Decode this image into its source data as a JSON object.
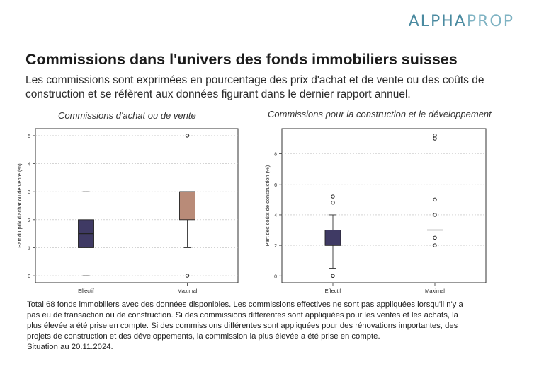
{
  "brand": {
    "logo_part1": "ALPHA",
    "logo_part2": "PROP"
  },
  "header": {
    "title": "Commissions dans l'univers des fonds immobiliers suisses",
    "subtitle": "Les commissions sont exprimées en pourcentage des prix d'achat et de vente ou des coûts de construction et se réfèrent aux données figurant dans le dernier rapport annuel."
  },
  "footnote": {
    "line1": "Total 68 fonds immobiliers avec des données disponibles. Les commissions effectives ne sont pas appliquées lorsqu'il n'y a",
    "line2": "pas eu de transaction ou de construction. Si des commissions différentes sont appliquées pour les ventes et les achats, la",
    "line3": "plus élevée a été prise en compte. Si des commissions différentes sont appliquées pour des rénovations importantes, des",
    "line4": "projets de construction et des développements, la commission la plus élevée a été prise en compte.",
    "line5": "Situation au 20.11.2024."
  },
  "chart_data": [
    {
      "type": "box",
      "title": "Commissions d'achat ou de vente",
      "ylabel": "Part du prix d'achat ou de vente (%)",
      "xlabel": "",
      "categories": [
        "Effectif",
        "Maximal"
      ],
      "yticks": [
        "0",
        "1",
        "2",
        "3",
        "4",
        "5"
      ],
      "ylim": [
        -0.25,
        5.25
      ],
      "grid": true,
      "boxes": [
        {
          "name": "Effectif",
          "whisker_low": 0,
          "q1": 1,
          "median": 1.5,
          "q3": 2,
          "whisker_high": 3,
          "outliers": [],
          "color": "#3f3a64"
        },
        {
          "name": "Maximal",
          "whisker_low": 1,
          "q1": 2,
          "median": 3,
          "q3": 3,
          "whisker_high": 3,
          "outliers": [
            0,
            5
          ],
          "color": "#b98b78"
        }
      ]
    },
    {
      "type": "box",
      "title": "Commissions pour la construction et le développement",
      "ylabel": "Part des coûts de construction (%)",
      "xlabel": "",
      "categories": [
        "Effectif",
        "Maximal"
      ],
      "yticks": [
        "0",
        "2",
        "4",
        "6",
        "8"
      ],
      "ylim": [
        -0.45,
        9.65
      ],
      "grid": true,
      "boxes": [
        {
          "name": "Effectif",
          "whisker_low": 0.5,
          "q1": 2,
          "median": 2,
          "q3": 3,
          "whisker_high": 4,
          "outliers": [
            0,
            4.8,
            5.2
          ],
          "color": "#3f3a64"
        },
        {
          "name": "Maximal",
          "whisker_low": 3,
          "q1": 3,
          "median": 3,
          "q3": 3,
          "whisker_high": 3,
          "outliers": [
            2,
            2.5,
            4,
            5,
            9,
            9.2
          ],
          "color": "#3f3a64"
        }
      ]
    }
  ]
}
